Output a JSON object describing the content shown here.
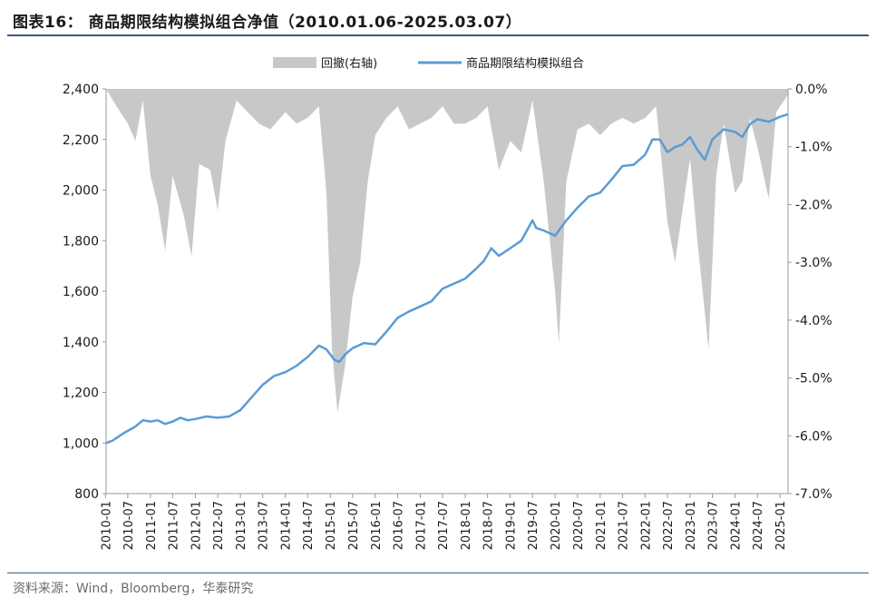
{
  "title": "图表16：  商品期限结构模拟组合净值（2010.01.06-2025.03.07）",
  "source": "资料来源：Wind，Bloomberg，华泰研究",
  "chart_data": {
    "type": "line",
    "legend": [
      {
        "name": "回撤(右轴)",
        "kind": "area",
        "color": "#c8c8c8"
      },
      {
        "name": "商品期限结构模拟组合",
        "kind": "line",
        "color": "#5b9bd5"
      }
    ],
    "legend_position": "top-center",
    "x_range": [
      "2010-01-06",
      "2025-03-07"
    ],
    "x_ticks": [
      "2010-01",
      "2010-07",
      "2011-01",
      "2011-07",
      "2012-01",
      "2012-07",
      "2013-01",
      "2013-07",
      "2014-01",
      "2014-07",
      "2015-01",
      "2015-07",
      "2016-01",
      "2016-07",
      "2017-01",
      "2017-07",
      "2018-01",
      "2018-07",
      "2019-01",
      "2019-07",
      "2020-01",
      "2020-07",
      "2021-01",
      "2021-07",
      "2022-01",
      "2022-07",
      "2023-01",
      "2023-07",
      "2024-01",
      "2024-07",
      "2025-01"
    ],
    "y_left": {
      "min": 800,
      "max": 2400,
      "ticks": [
        "800",
        "1,000",
        "1,200",
        "1,400",
        "1,600",
        "1,800",
        "2,000",
        "2,200",
        "2,400"
      ]
    },
    "y_right": {
      "min": -7.0,
      "max": 0.0,
      "ticks": [
        "-7.0%",
        "-6.0%",
        "-5.0%",
        "-4.0%",
        "-3.0%",
        "-2.0%",
        "-1.0%",
        "0.0%"
      ]
    },
    "series": [
      {
        "name": "商品期限结构模拟组合",
        "axis": "left",
        "points": [
          [
            "2010-01-06",
            1000
          ],
          [
            "2010-03-01",
            1010
          ],
          [
            "2010-06-01",
            1040
          ],
          [
            "2010-09-01",
            1065
          ],
          [
            "2010-11-01",
            1090
          ],
          [
            "2011-01-01",
            1085
          ],
          [
            "2011-03-01",
            1090
          ],
          [
            "2011-05-01",
            1075
          ],
          [
            "2011-07-01",
            1085
          ],
          [
            "2011-09-01",
            1100
          ],
          [
            "2011-11-01",
            1090
          ],
          [
            "2012-01-01",
            1095
          ],
          [
            "2012-04-01",
            1105
          ],
          [
            "2012-07-01",
            1100
          ],
          [
            "2012-10-01",
            1105
          ],
          [
            "2013-01-01",
            1130
          ],
          [
            "2013-04-01",
            1180
          ],
          [
            "2013-07-01",
            1230
          ],
          [
            "2013-10-01",
            1265
          ],
          [
            "2014-01-01",
            1280
          ],
          [
            "2014-04-01",
            1305
          ],
          [
            "2014-07-01",
            1340
          ],
          [
            "2014-10-01",
            1385
          ],
          [
            "2014-12-01",
            1370
          ],
          [
            "2015-02-01",
            1330
          ],
          [
            "2015-03-15",
            1320
          ],
          [
            "2015-05-01",
            1350
          ],
          [
            "2015-07-01",
            1375
          ],
          [
            "2015-10-01",
            1395
          ],
          [
            "2016-01-01",
            1390
          ],
          [
            "2016-04-01",
            1440
          ],
          [
            "2016-07-01",
            1495
          ],
          [
            "2016-10-01",
            1520
          ],
          [
            "2017-01-01",
            1540
          ],
          [
            "2017-04-01",
            1560
          ],
          [
            "2017-07-01",
            1610
          ],
          [
            "2017-10-01",
            1630
          ],
          [
            "2018-01-01",
            1650
          ],
          [
            "2018-04-01",
            1690
          ],
          [
            "2018-06-01",
            1720
          ],
          [
            "2018-08-01",
            1770
          ],
          [
            "2018-10-01",
            1740
          ],
          [
            "2019-01-01",
            1770
          ],
          [
            "2019-04-01",
            1800
          ],
          [
            "2019-07-01",
            1880
          ],
          [
            "2019-08-01",
            1850
          ],
          [
            "2019-10-01",
            1840
          ],
          [
            "2020-01-01",
            1820
          ],
          [
            "2020-04-01",
            1880
          ],
          [
            "2020-07-01",
            1930
          ],
          [
            "2020-10-01",
            1975
          ],
          [
            "2021-01-01",
            1990
          ],
          [
            "2021-04-01",
            2040
          ],
          [
            "2021-07-01",
            2095
          ],
          [
            "2021-10-01",
            2100
          ],
          [
            "2022-01-01",
            2140
          ],
          [
            "2022-03-01",
            2200
          ],
          [
            "2022-05-01",
            2200
          ],
          [
            "2022-07-01",
            2150
          ],
          [
            "2022-09-01",
            2170
          ],
          [
            "2022-11-01",
            2180
          ],
          [
            "2023-01-01",
            2210
          ],
          [
            "2023-03-01",
            2160
          ],
          [
            "2023-05-01",
            2120
          ],
          [
            "2023-07-01",
            2200
          ],
          [
            "2023-10-01",
            2240
          ],
          [
            "2024-01-01",
            2230
          ],
          [
            "2024-03-01",
            2210
          ],
          [
            "2024-05-01",
            2260
          ],
          [
            "2024-07-01",
            2280
          ],
          [
            "2024-10-01",
            2270
          ],
          [
            "2025-01-01",
            2290
          ],
          [
            "2025-03-07",
            2300
          ]
        ]
      },
      {
        "name": "回撤(右轴)",
        "axis": "right",
        "points": [
          [
            "2010-01-06",
            0.0
          ],
          [
            "2010-04-01",
            -0.3
          ],
          [
            "2010-07-01",
            -0.6
          ],
          [
            "2010-09-01",
            -0.9
          ],
          [
            "2010-11-01",
            -0.2
          ],
          [
            "2011-01-01",
            -1.5
          ],
          [
            "2011-03-01",
            -2.0
          ],
          [
            "2011-05-01",
            -2.8
          ],
          [
            "2011-07-01",
            -1.5
          ],
          [
            "2011-10-01",
            -2.2
          ],
          [
            "2011-12-01",
            -2.9
          ],
          [
            "2012-02-01",
            -1.3
          ],
          [
            "2012-05-01",
            -1.4
          ],
          [
            "2012-07-01",
            -2.1
          ],
          [
            "2012-09-01",
            -0.9
          ],
          [
            "2012-12-01",
            -0.2
          ],
          [
            "2013-03-01",
            -0.4
          ],
          [
            "2013-06-01",
            -0.6
          ],
          [
            "2013-09-01",
            -0.7
          ],
          [
            "2014-01-01",
            -0.4
          ],
          [
            "2014-04-01",
            -0.6
          ],
          [
            "2014-07-01",
            -0.5
          ],
          [
            "2014-10-01",
            -0.3
          ],
          [
            "2014-12-01",
            -1.8
          ],
          [
            "2015-01-15",
            -4.5
          ],
          [
            "2015-03-01",
            -5.6
          ],
          [
            "2015-05-01",
            -4.8
          ],
          [
            "2015-07-01",
            -3.6
          ],
          [
            "2015-09-01",
            -3.0
          ],
          [
            "2015-11-01",
            -1.6
          ],
          [
            "2016-01-01",
            -0.8
          ],
          [
            "2016-04-01",
            -0.5
          ],
          [
            "2016-07-01",
            -0.3
          ],
          [
            "2016-10-01",
            -0.7
          ],
          [
            "2017-01-01",
            -0.6
          ],
          [
            "2017-04-01",
            -0.5
          ],
          [
            "2017-07-01",
            -0.3
          ],
          [
            "2017-10-01",
            -0.6
          ],
          [
            "2018-01-01",
            -0.6
          ],
          [
            "2018-04-01",
            -0.5
          ],
          [
            "2018-07-01",
            -0.3
          ],
          [
            "2018-10-01",
            -1.4
          ],
          [
            "2019-01-01",
            -0.9
          ],
          [
            "2019-04-01",
            -1.1
          ],
          [
            "2019-07-01",
            -0.2
          ],
          [
            "2019-10-01",
            -1.6
          ],
          [
            "2020-01-01",
            -3.5
          ],
          [
            "2020-02-01",
            -4.4
          ],
          [
            "2020-04-01",
            -1.6
          ],
          [
            "2020-07-01",
            -0.7
          ],
          [
            "2020-10-01",
            -0.6
          ],
          [
            "2021-01-01",
            -0.8
          ],
          [
            "2021-04-01",
            -0.6
          ],
          [
            "2021-07-01",
            -0.5
          ],
          [
            "2021-10-01",
            -0.6
          ],
          [
            "2022-01-01",
            -0.5
          ],
          [
            "2022-04-01",
            -0.3
          ],
          [
            "2022-07-01",
            -2.3
          ],
          [
            "2022-09-01",
            -3.0
          ],
          [
            "2022-11-01",
            -2.1
          ],
          [
            "2023-01-01",
            -1.2
          ],
          [
            "2023-03-01",
            -2.6
          ],
          [
            "2023-06-01",
            -4.5
          ],
          [
            "2023-08-01",
            -1.5
          ],
          [
            "2023-10-01",
            -0.6
          ],
          [
            "2024-01-01",
            -1.8
          ],
          [
            "2024-03-01",
            -1.6
          ],
          [
            "2024-05-01",
            -0.5
          ],
          [
            "2024-07-01",
            -1.0
          ],
          [
            "2024-10-01",
            -1.9
          ],
          [
            "2024-12-01",
            -0.4
          ],
          [
            "2025-03-07",
            -0.1
          ]
        ]
      }
    ]
  }
}
